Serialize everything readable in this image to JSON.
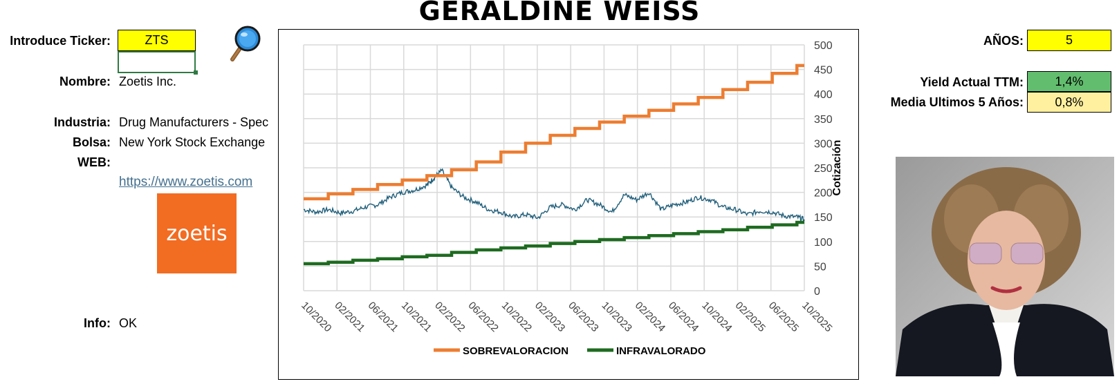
{
  "title": "GERALDINE WEISS",
  "left": {
    "ticker_label": "Introduce Ticker:",
    "ticker_value": "ZTS",
    "nombre_label": "Nombre:",
    "nombre_value": "Zoetis Inc.",
    "industria_label": "Industria:",
    "industria_value": "Drug Manufacturers - Spec",
    "bolsa_label": "Bolsa:",
    "bolsa_value": "New York Stock Exchange",
    "web_label": "WEB:",
    "web_value": "https://www.zoetis.com",
    "logo_text": "zoetis",
    "info_label": "Info:",
    "info_value": "OK"
  },
  "right": {
    "anos_label": "AÑOS:",
    "anos_value": "5",
    "yield_label": "Yield Actual TTM:",
    "yield_value": "1,4%",
    "media_label": "Media Ultimos 5 Años:",
    "media_value": "0,8%"
  },
  "icons": {
    "search": "magnifier-icon",
    "photo": "portrait-photo"
  },
  "colors": {
    "sobrevaloracion": "#ed7d31",
    "infravalorado": "#1e6b20",
    "precio": "#1f5e7a",
    "ticker_cell": "#ffff00",
    "yield_cell": "#62bd6e",
    "media_cell": "#fff0a0",
    "logo_bg": "#f26c22"
  },
  "chart_data": {
    "type": "line",
    "ylabel": "Cotización",
    "ylim": [
      0,
      500
    ],
    "yticks": [
      "0",
      "50",
      "100",
      "150",
      "200",
      "250",
      "300",
      "350",
      "400",
      "450",
      "500"
    ],
    "x_tick_labels": [
      "10/2020",
      "02/2021",
      "06/2021",
      "10/2021",
      "02/2022",
      "06/2022",
      "10/2022",
      "02/2023",
      "06/2023",
      "10/2023",
      "02/2024",
      "06/2024",
      "10/2024",
      "02/2025",
      "06/2025",
      "10/2025"
    ],
    "grid": true,
    "legend_position": "bottom",
    "series": [
      {
        "name": "SOBREVALORACION",
        "x": [
          0,
          1,
          2,
          3,
          4,
          5,
          6,
          7,
          8,
          9,
          10,
          11,
          12,
          13,
          14,
          15,
          16,
          17,
          18,
          19,
          20
        ],
        "values": [
          187,
          197,
          206,
          216,
          225,
          234,
          246,
          262,
          282,
          300,
          316,
          330,
          343,
          355,
          367,
          380,
          393,
          409,
          424,
          442,
          458
        ]
      },
      {
        "name": "INFRAVALORADO",
        "x": [
          0,
          1,
          2,
          3,
          4,
          5,
          6,
          7,
          8,
          9,
          10,
          11,
          12,
          13,
          14,
          15,
          16,
          17,
          18,
          19,
          20
        ],
        "values": [
          55,
          58,
          62,
          65,
          69,
          72,
          78,
          83,
          87,
          91,
          96,
          100,
          104,
          108,
          112,
          116,
          120,
          124,
          129,
          134,
          139
        ]
      },
      {
        "name": "",
        "x": [
          0,
          0.5,
          1,
          1.5,
          2,
          2.5,
          3,
          3.5,
          4,
          4.5,
          5,
          5.3,
          5.6,
          6,
          6.5,
          7,
          7.5,
          8,
          8.5,
          9,
          9.5,
          10,
          10.5,
          11,
          11.5,
          12,
          12.5,
          13,
          13.5,
          14,
          14.5,
          15,
          15.5,
          16,
          16.5,
          17,
          17.5,
          18,
          18.5,
          19,
          19.5,
          20,
          20.3
        ],
        "values": [
          165,
          160,
          165,
          158,
          162,
          170,
          175,
          190,
          200,
          205,
          215,
          230,
          245,
          210,
          190,
          180,
          165,
          160,
          150,
          155,
          148,
          170,
          175,
          165,
          185,
          175,
          160,
          195,
          185,
          200,
          165,
          175,
          180,
          190,
          185,
          170,
          165,
          155,
          162,
          160,
          152,
          150,
          145
        ]
      }
    ]
  }
}
